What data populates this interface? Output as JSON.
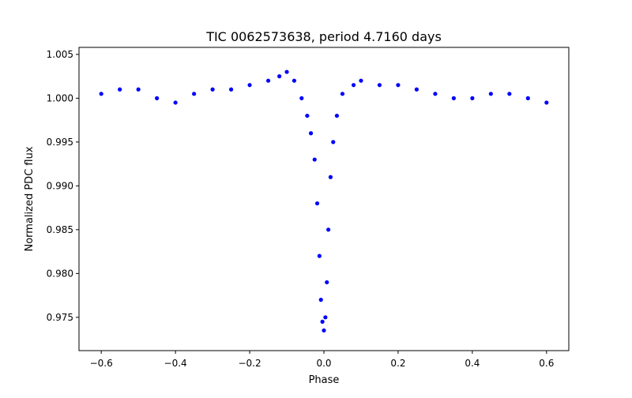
{
  "chart_data": {
    "type": "scatter",
    "title": "TIC 0062573638, period 4.7160 days",
    "xlabel": "Phase",
    "ylabel": "Normalized PDC flux",
    "xlim": [
      -0.66,
      0.66
    ],
    "ylim": [
      0.9712,
      1.0058
    ],
    "x_ticks": [
      -0.6,
      -0.4,
      -0.2,
      0.0,
      0.2,
      0.4,
      0.6
    ],
    "x_tick_labels": [
      "−0.6",
      "−0.4",
      "−0.2",
      "0.0",
      "0.2",
      "0.4",
      "0.6"
    ],
    "y_ticks": [
      0.975,
      0.98,
      0.985,
      0.99,
      0.995,
      1.0,
      1.005
    ],
    "y_tick_labels": [
      "0.975",
      "0.980",
      "0.985",
      "0.990",
      "0.995",
      "1.000",
      "1.005"
    ],
    "grid": false,
    "marker_color": "#0000ff",
    "series": [
      {
        "name": "",
        "color": "#0000ff",
        "x": [
          -0.6,
          -0.55,
          -0.5,
          -0.45,
          -0.4,
          -0.35,
          -0.3,
          -0.25,
          -0.2,
          -0.15,
          -0.12,
          -0.1,
          -0.08,
          -0.06,
          -0.045,
          -0.035,
          -0.025,
          -0.018,
          -0.012,
          -0.008,
          -0.004,
          0.0,
          0.004,
          0.008,
          0.012,
          0.018,
          0.025,
          0.035,
          0.05,
          0.08,
          0.1,
          0.15,
          0.2,
          0.25,
          0.3,
          0.35,
          0.4,
          0.45,
          0.5,
          0.55,
          0.6
        ],
        "y": [
          1.0005,
          1.001,
          1.001,
          1.0,
          0.9995,
          1.0005,
          1.001,
          1.001,
          1.0015,
          1.002,
          1.0025,
          1.003,
          1.002,
          1.0,
          0.998,
          0.996,
          0.993,
          0.988,
          0.982,
          0.977,
          0.9745,
          0.9735,
          0.975,
          0.979,
          0.985,
          0.991,
          0.995,
          0.998,
          1.0005,
          1.0015,
          1.002,
          1.0015,
          1.0015,
          1.001,
          1.0005,
          1.0,
          1.0,
          1.0005,
          1.0005,
          1.0,
          0.9995
        ]
      }
    ]
  }
}
